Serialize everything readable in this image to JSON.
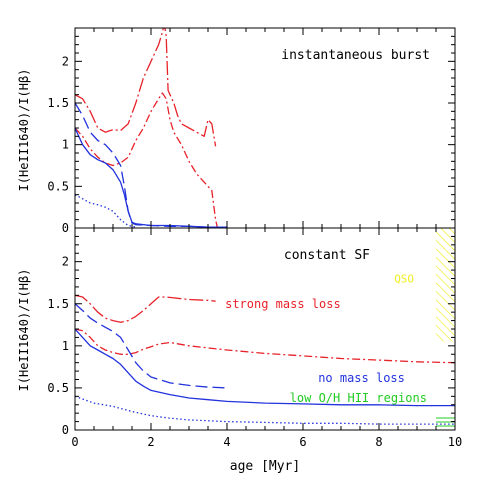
{
  "figure": {
    "xlabel": "age [Myr]",
    "ylabel": "I(HeII1640)/I(Hβ)",
    "xticks": [
      "0",
      "2",
      "4",
      "6",
      "8",
      "10"
    ],
    "yticks": [
      "0",
      "0.5",
      "1",
      "1.5",
      "2"
    ],
    "colors": {
      "red": "#e8222a",
      "blue": "#2233dd",
      "green": "#22cc22",
      "yellow": "#eeee22"
    }
  },
  "chart_data": [
    {
      "type": "line",
      "panel": "top",
      "annotation": "instantaneous burst",
      "xlim": [
        0,
        10
      ],
      "ylim": [
        0,
        2.4
      ],
      "series": [
        {
          "color": "red",
          "style": "dash-dot-long",
          "x": [
            0,
            0.2,
            0.4,
            0.6,
            0.8,
            1.0,
            1.2,
            1.4,
            1.6,
            1.8,
            2.0,
            2.1,
            2.2,
            2.3,
            2.35,
            2.4,
            2.45,
            2.5,
            2.6,
            2.7,
            2.8,
            3.0,
            3.2,
            3.4,
            3.5,
            3.6,
            3.7
          ],
          "y": [
            1.6,
            1.55,
            1.4,
            1.2,
            1.15,
            1.18,
            1.17,
            1.25,
            1.5,
            1.8,
            2.0,
            2.1,
            2.2,
            2.35,
            2.45,
            2.3,
            1.65,
            1.6,
            1.5,
            1.35,
            1.25,
            1.2,
            1.15,
            1.1,
            1.3,
            1.25,
            0.98
          ]
        },
        {
          "color": "red",
          "style": "dash-dot",
          "x": [
            0,
            0.2,
            0.4,
            0.6,
            0.8,
            1.0,
            1.2,
            1.4,
            1.6,
            1.8,
            2.0,
            2.2,
            2.3,
            2.4,
            2.5,
            2.6,
            2.8,
            3.0,
            3.2,
            3.4,
            3.6,
            3.7,
            3.75
          ],
          "y": [
            1.2,
            1.1,
            0.95,
            0.85,
            0.78,
            0.75,
            0.78,
            0.85,
            1.05,
            1.2,
            1.4,
            1.55,
            1.62,
            1.55,
            1.3,
            1.15,
            1.0,
            0.8,
            0.65,
            0.55,
            0.45,
            0.1,
            0
          ]
        },
        {
          "color": "blue",
          "style": "long-dash",
          "x": [
            0,
            0.2,
            0.4,
            0.6,
            0.8,
            1.0,
            1.2,
            1.3,
            1.4,
            1.5,
            1.6,
            2.0,
            2.5,
            3.0,
            3.5
          ],
          "y": [
            1.5,
            1.35,
            1.15,
            1.05,
            1.0,
            0.9,
            0.75,
            0.5,
            0.2,
            0.06,
            0.04,
            0.03,
            0.02,
            0.02,
            0.01
          ]
        },
        {
          "color": "blue",
          "style": "solid",
          "x": [
            0,
            0.2,
            0.4,
            0.6,
            0.8,
            1.0,
            1.2,
            1.3,
            1.4,
            1.5,
            1.6,
            2.0,
            2.5,
            3.0,
            3.5,
            4.0
          ],
          "y": [
            1.2,
            1.0,
            0.88,
            0.82,
            0.78,
            0.7,
            0.55,
            0.4,
            0.2,
            0.07,
            0.05,
            0.03,
            0.03,
            0.02,
            0.01,
            0.01
          ]
        },
        {
          "color": "blue",
          "style": "dotted",
          "x": [
            0,
            0.2,
            0.4,
            0.6,
            0.8,
            1.0,
            1.2,
            1.4,
            1.6
          ],
          "y": [
            0.4,
            0.35,
            0.3,
            0.28,
            0.25,
            0.2,
            0.1,
            0.03,
            0.01
          ]
        }
      ]
    },
    {
      "type": "line",
      "panel": "bottom",
      "annotation": "constant SF",
      "xlim": [
        0,
        10
      ],
      "ylim": [
        0,
        2.4
      ],
      "series": [
        {
          "color": "red",
          "style": "dash-dot-long",
          "name": "strong mass loss",
          "x": [
            0,
            0.2,
            0.4,
            0.6,
            0.8,
            1.0,
            1.2,
            1.4,
            1.6,
            1.8,
            2.0,
            2.2,
            2.4,
            2.6,
            3.0,
            3.5,
            3.7
          ],
          "y": [
            1.6,
            1.58,
            1.5,
            1.4,
            1.33,
            1.3,
            1.28,
            1.3,
            1.35,
            1.42,
            1.5,
            1.58,
            1.58,
            1.57,
            1.55,
            1.54,
            1.53
          ]
        },
        {
          "color": "red",
          "style": "dash-dot",
          "x": [
            0,
            0.2,
            0.4,
            0.6,
            0.8,
            1.0,
            1.2,
            1.4,
            1.6,
            1.8,
            2.0,
            2.2,
            2.5,
            3.0,
            4.0,
            5.0,
            6.0,
            7.0,
            8.0,
            9.0,
            10.0
          ],
          "y": [
            1.2,
            1.18,
            1.1,
            1.0,
            0.95,
            0.92,
            0.9,
            0.9,
            0.92,
            0.96,
            0.99,
            1.02,
            1.04,
            1.0,
            0.95,
            0.91,
            0.88,
            0.85,
            0.83,
            0.81,
            0.8
          ]
        },
        {
          "color": "blue",
          "style": "long-dash",
          "name": "no mass loss",
          "x": [
            0,
            0.2,
            0.4,
            0.6,
            0.8,
            1.0,
            1.2,
            1.4,
            1.6,
            1.8,
            2.0,
            2.5,
            3.0,
            3.5,
            4.0
          ],
          "y": [
            1.5,
            1.42,
            1.33,
            1.27,
            1.22,
            1.17,
            1.1,
            0.95,
            0.8,
            0.7,
            0.63,
            0.56,
            0.53,
            0.51,
            0.5
          ]
        },
        {
          "color": "blue",
          "style": "solid",
          "x": [
            0,
            0.2,
            0.4,
            0.6,
            0.8,
            1.0,
            1.2,
            1.4,
            1.6,
            1.8,
            2.0,
            2.5,
            3.0,
            3.5,
            4.0,
            5.0,
            6.0,
            7.0,
            8.0,
            9.0,
            10.0
          ],
          "y": [
            1.2,
            1.1,
            1.0,
            0.95,
            0.9,
            0.85,
            0.78,
            0.68,
            0.58,
            0.52,
            0.47,
            0.42,
            0.38,
            0.36,
            0.34,
            0.32,
            0.31,
            0.3,
            0.3,
            0.29,
            0.29
          ]
        },
        {
          "color": "blue",
          "style": "dotted",
          "x": [
            0,
            0.5,
            1.0,
            1.5,
            2.0,
            2.5,
            3.0,
            4.0,
            5.0,
            6.0,
            7.0,
            8.0,
            9.0,
            10.0
          ],
          "y": [
            0.4,
            0.32,
            0.28,
            0.22,
            0.17,
            0.14,
            0.12,
            0.1,
            0.09,
            0.08,
            0.08,
            0.07,
            0.07,
            0.07
          ]
        }
      ],
      "labels": [
        {
          "text": "strong mass loss",
          "color": "red",
          "x": 3.95,
          "y": 1.5
        },
        {
          "text": "no mass loss",
          "color": "blue",
          "x": 6.4,
          "y": 0.62
        },
        {
          "text": "low O/H HII regions",
          "color": "green",
          "x": 5.65,
          "y": 0.38
        },
        {
          "text": "QSO",
          "color": "yellow",
          "x": 8.4,
          "y": 1.8
        }
      ],
      "regions": [
        {
          "name": "QSO",
          "color": "yellow",
          "x": [
            9.5,
            10
          ],
          "y": [
            1.05,
            2.45
          ]
        },
        {
          "name": "low O/H HII regions",
          "color": "green",
          "x": [
            9.5,
            10
          ],
          "y": [
            0.02,
            0.18
          ]
        }
      ]
    }
  ]
}
